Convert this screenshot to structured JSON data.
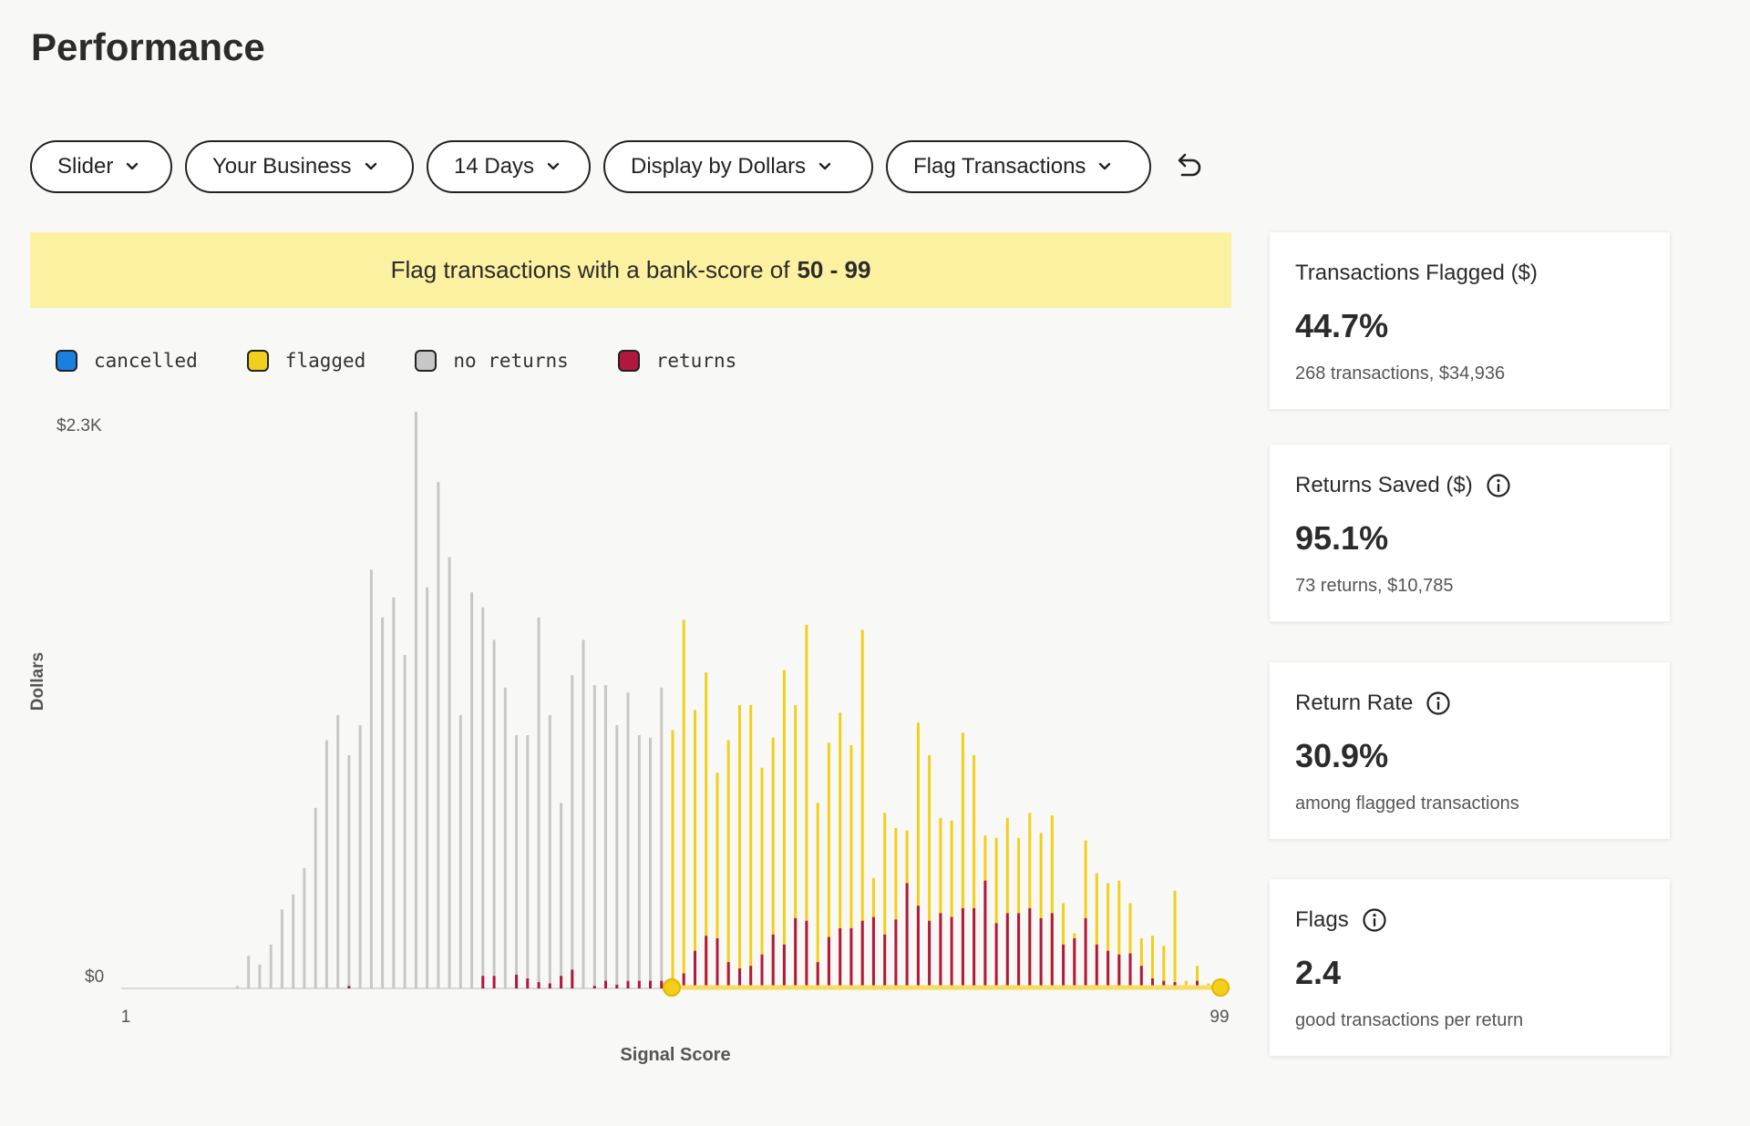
{
  "page": {
    "title": "Performance"
  },
  "toolbar": {
    "filters": [
      {
        "label": "Slider"
      },
      {
        "label": "Your Business"
      },
      {
        "label": "14 Days"
      },
      {
        "label": "Display by Dollars"
      },
      {
        "label": "Flag Transactions"
      }
    ],
    "undo_icon": "undo-icon"
  },
  "banner": {
    "prefix": "Flag transactions with a bank-score of",
    "range": "50 - 99"
  },
  "legend": [
    {
      "label": "cancelled",
      "color": "#1a7fe0"
    },
    {
      "label": "flagged",
      "color": "#f2cf1a"
    },
    {
      "label": "no returns",
      "color": "#c7c7c7"
    },
    {
      "label": "returns",
      "color": "#b2183e"
    }
  ],
  "cards": [
    {
      "title": "Transactions Flagged ($)",
      "info": false,
      "value": "44.7%",
      "sub": "268 transactions, $34,936"
    },
    {
      "title": "Returns Saved ($)",
      "info": true,
      "value": "95.1%",
      "sub": "73 returns, $10,785"
    },
    {
      "title": "Return Rate",
      "info": true,
      "value": "30.9%",
      "sub": "among flagged transactions"
    },
    {
      "title": "Flags",
      "info": true,
      "value": "2.4",
      "sub": "good transactions per return"
    }
  ],
  "chart_data": {
    "type": "bar",
    "xlabel": "Signal Score",
    "ylabel": "Dollars",
    "x_tick_labels": [
      "1",
      "99"
    ],
    "y_tick_labels": [
      "$0",
      "$2.3K"
    ],
    "xlim": [
      1,
      99
    ],
    "ylim": [
      0,
      2300
    ],
    "selection": [
      50,
      99
    ],
    "colors": {
      "no_returns": "#c7c7c7",
      "flagged": "#f2cf1a",
      "returns": "#b2183e",
      "handle": "#f2cf1a"
    },
    "x": [
      11,
      12,
      13,
      14,
      15,
      16,
      17,
      18,
      19,
      20,
      21,
      22,
      23,
      24,
      25,
      26,
      27,
      28,
      29,
      30,
      31,
      32,
      33,
      34,
      35,
      36,
      37,
      38,
      39,
      40,
      41,
      42,
      43,
      44,
      45,
      46,
      47,
      48,
      49,
      50,
      51,
      52,
      53,
      54,
      55,
      56,
      57,
      58,
      59,
      60,
      61,
      62,
      63,
      64,
      65,
      66,
      67,
      68,
      69,
      70,
      71,
      72,
      73,
      74,
      75,
      76,
      77,
      78,
      79,
      80,
      81,
      82,
      83,
      84,
      85,
      86,
      87,
      88,
      89,
      90,
      91,
      92,
      93,
      94,
      95,
      96,
      97,
      98
    ],
    "series": [
      {
        "name": "no returns",
        "values": [
          10,
          130,
          95,
          175,
          315,
          375,
          480,
          720,
          990,
          1090,
          930,
          1050,
          1670,
          1480,
          1560,
          1330,
          2300,
          1600,
          2020,
          1720,
          1090,
          1580,
          1520,
          1390,
          1200,
          1010,
          1010,
          1480,
          1090,
          740,
          1250,
          1390,
          1210,
          1210,
          1050,
          1180,
          1010,
          1000,
          1200,
          0,
          0,
          0,
          0,
          0,
          0,
          0,
          0,
          0,
          0,
          0,
          0,
          0,
          0,
          0,
          0,
          0,
          0,
          0,
          0,
          0,
          0,
          0,
          0,
          0,
          0,
          0,
          0,
          0,
          0,
          0,
          0,
          0,
          0,
          0,
          0,
          0,
          0,
          0,
          0,
          0,
          0,
          0,
          0,
          0,
          0,
          0,
          0,
          0
        ]
      },
      {
        "name": "flagged",
        "values": [
          0,
          0,
          0,
          0,
          0,
          0,
          0,
          0,
          0,
          0,
          0,
          0,
          0,
          0,
          0,
          0,
          0,
          0,
          0,
          0,
          0,
          0,
          0,
          0,
          0,
          0,
          0,
          0,
          0,
          0,
          0,
          0,
          0,
          0,
          0,
          0,
          0,
          0,
          0,
          1030,
          1470,
          1110,
          1260,
          860,
          990,
          1130,
          1130,
          880,
          1000,
          1270,
          1130,
          1450,
          740,
          980,
          1100,
          970,
          1430,
          440,
          700,
          640,
          630,
          1060,
          930,
          680,
          670,
          1020,
          930,
          610,
          600,
          680,
          600,
          700,
          620,
          690,
          340,
          220,
          590,
          460,
          420,
          430,
          340,
          200,
          210,
          170,
          390,
          30,
          90,
          20
        ]
      },
      {
        "name": "returns",
        "values": [
          0,
          0,
          0,
          0,
          0,
          0,
          0,
          0,
          0,
          0,
          10,
          0,
          0,
          0,
          0,
          0,
          0,
          0,
          0,
          0,
          0,
          0,
          50,
          50,
          0,
          55,
          40,
          25,
          20,
          50,
          75,
          0,
          10,
          30,
          15,
          30,
          30,
          30,
          30,
          10,
          60,
          150,
          210,
          200,
          105,
          80,
          90,
          135,
          215,
          175,
          280,
          270,
          105,
          205,
          240,
          240,
          270,
          285,
          215,
          275,
          420,
          330,
          270,
          300,
          285,
          320,
          320,
          430,
          260,
          300,
          300,
          320,
          280,
          300,
          175,
          200,
          280,
          175,
          150,
          135,
          140,
          90,
          40,
          30,
          25,
          0,
          30,
          10
        ]
      }
    ]
  }
}
